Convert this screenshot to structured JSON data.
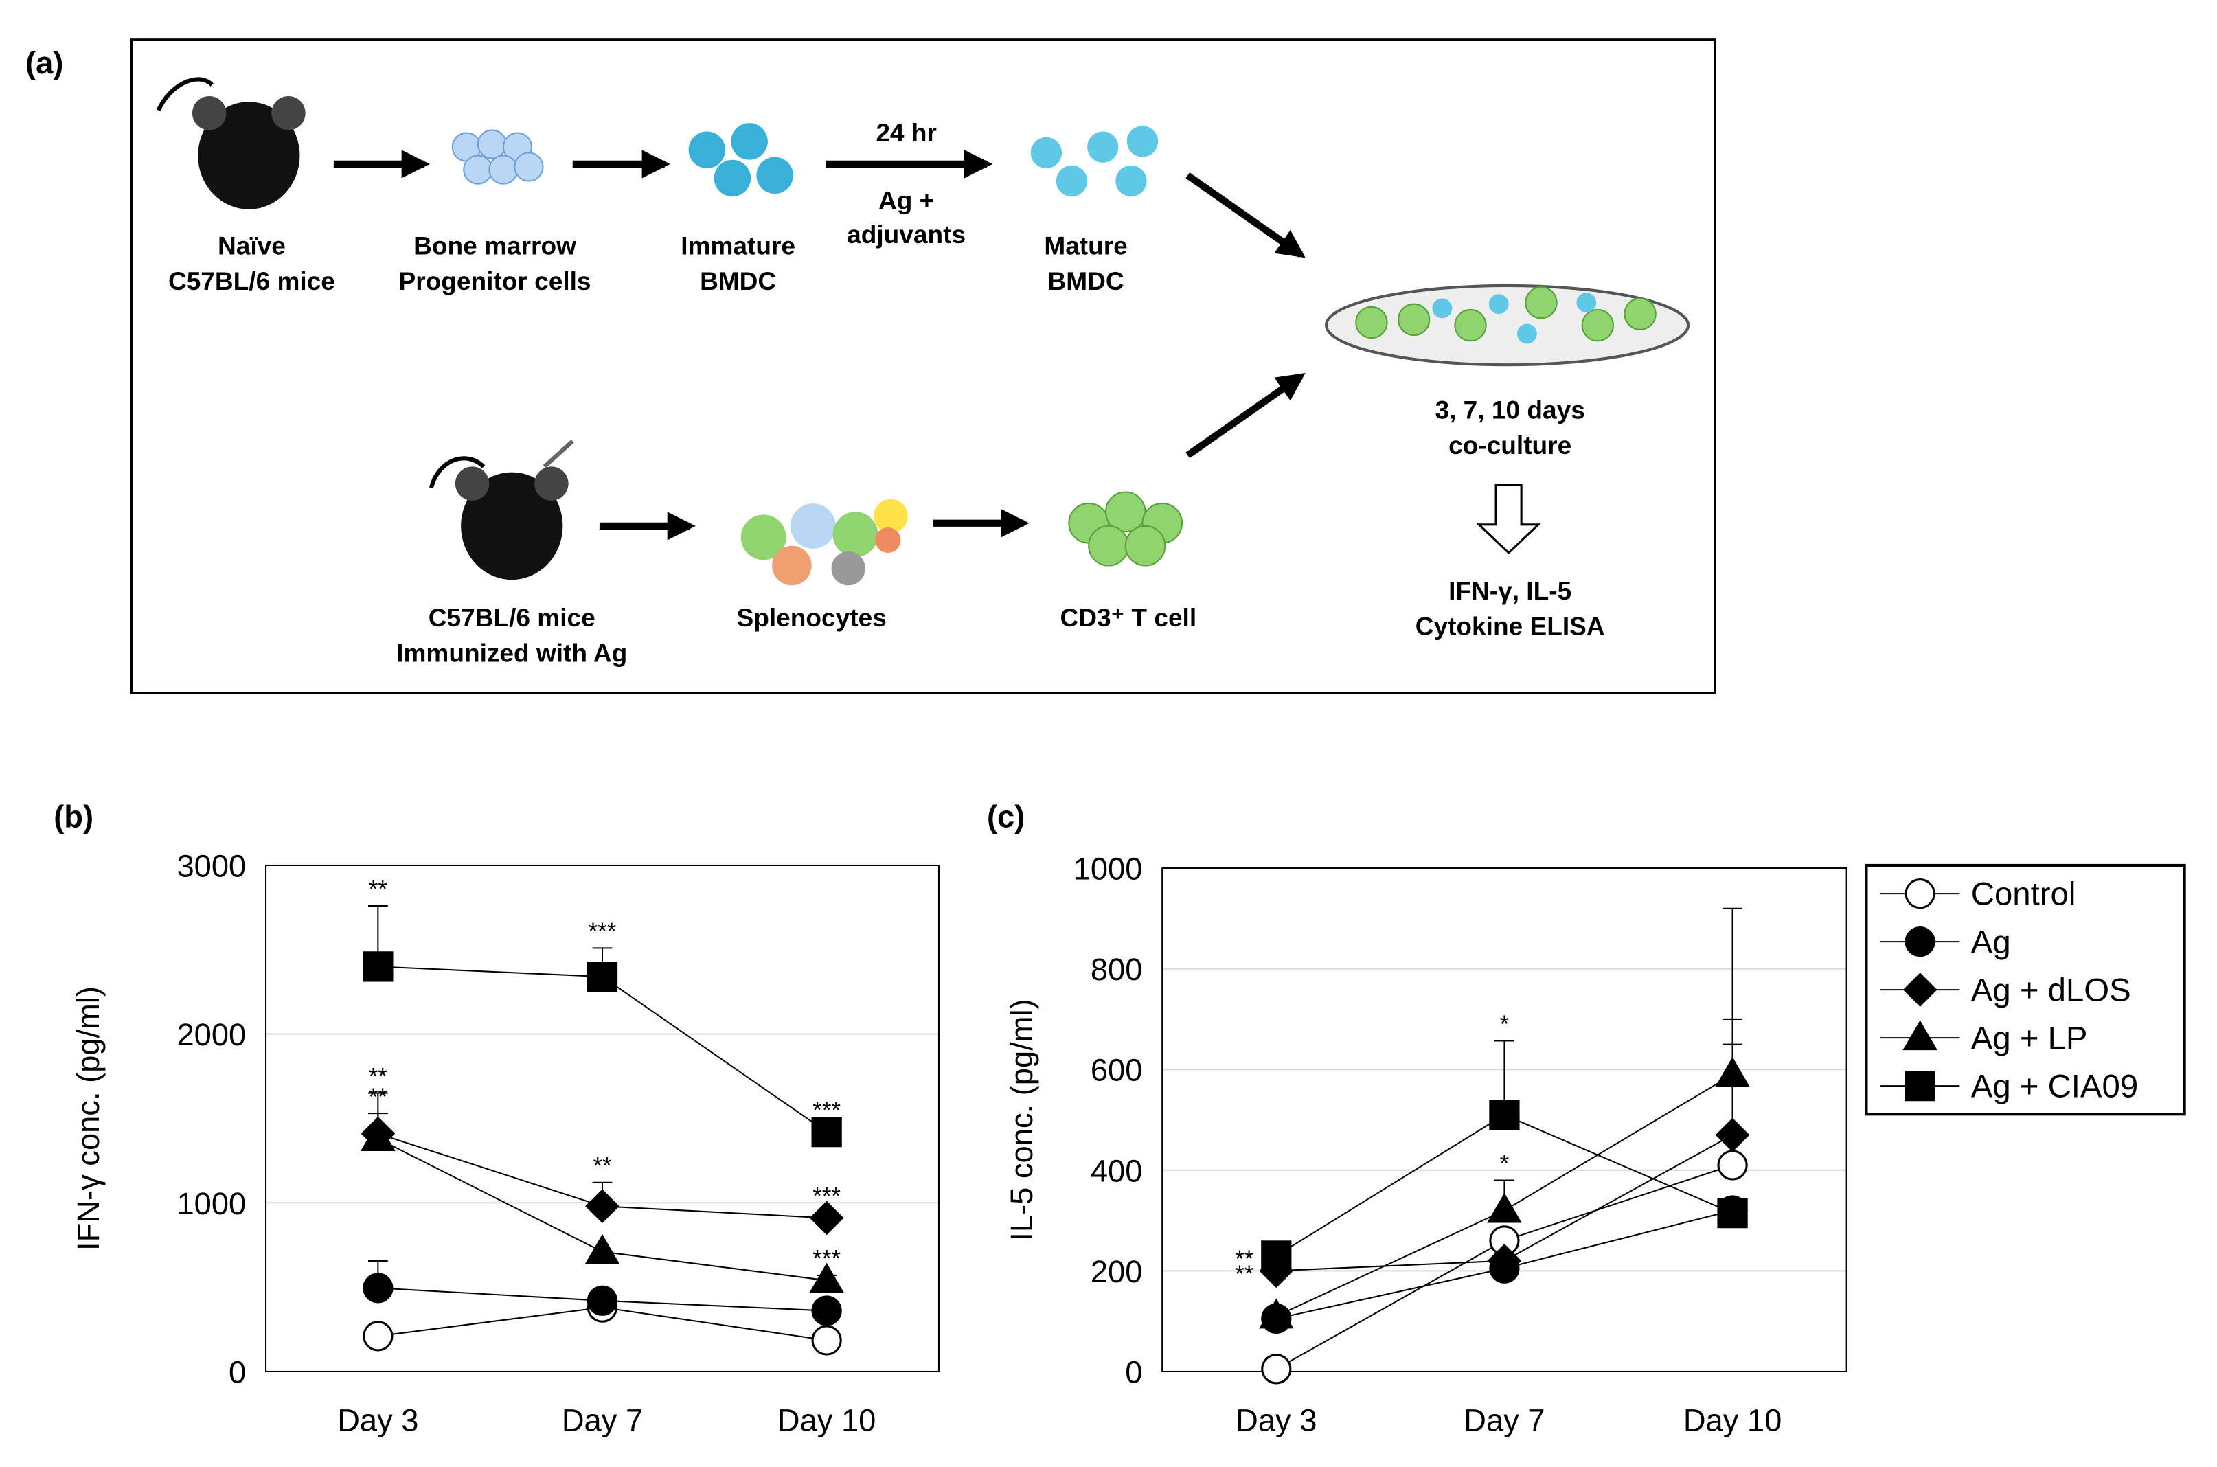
{
  "diagram": {
    "panel_label": "(a)",
    "nodes": [
      {
        "label": [
          "Naïve",
          "C57BL/6 mice"
        ]
      },
      {
        "label": [
          "Bone marrow",
          "Progenitor cells"
        ]
      },
      {
        "label": [
          "Immature",
          "BMDC"
        ]
      },
      {
        "label": [
          "Mature",
          "BMDC"
        ]
      },
      {
        "label": [
          "C57BL/6 mice",
          "Immunized with Ag"
        ]
      },
      {
        "label": [
          "Splenocytes"
        ]
      },
      {
        "label": [
          "CD3⁺ T cell"
        ]
      },
      {
        "label": [
          "3, 7, 10 days",
          "co-culture"
        ]
      },
      {
        "label": [
          "IFN-γ, IL-5",
          "Cytokine ELISA"
        ]
      }
    ],
    "arrow_label": {
      "above": "24 hr",
      "below": [
        "Ag +",
        "adjuvants"
      ]
    }
  },
  "chart_data": [
    {
      "type": "line",
      "panel_label": "(b)",
      "y_label": "IFN-γ conc. (pg/ml)",
      "categories": [
        "Day 3",
        "Day 7",
        "Day 10"
      ],
      "ylim": [
        0,
        3000
      ],
      "yticks": [
        0,
        1000,
        2000,
        3000
      ],
      "grid": true,
      "series": [
        {
          "marker": "open-circle",
          "color": "#000000",
          "values": [
            210,
            380,
            185
          ],
          "errors": [
            0,
            0,
            0
          ],
          "annotations": [
            null,
            null,
            null
          ]
        },
        {
          "marker": "circle",
          "color": "#000000",
          "values": [
            495,
            420,
            360
          ],
          "errors": [
            160,
            0,
            0
          ],
          "annotations": [
            null,
            null,
            null
          ]
        },
        {
          "marker": "diamond",
          "color": "#000000",
          "values": [
            1410,
            980,
            910
          ],
          "errors": [
            240,
            140,
            30
          ],
          "annotations": [
            "**",
            "**",
            "***"
          ]
        },
        {
          "marker": "triangle",
          "color": "#000000",
          "values": [
            1380,
            710,
            540
          ],
          "errors": [
            150,
            0,
            30
          ],
          "annotations": [
            "**",
            null,
            "***"
          ]
        },
        {
          "marker": "square",
          "color": "#000000",
          "values": [
            2400,
            2340,
            1420
          ],
          "errors": [
            360,
            170,
            30
          ],
          "annotations": [
            "**",
            "***",
            "***"
          ]
        }
      ]
    },
    {
      "type": "line",
      "panel_label": "(c)",
      "y_label": "IL-5 conc. (pg/ml)",
      "categories": [
        "Day 3",
        "Day 7",
        "Day 10"
      ],
      "ylim": [
        0,
        1000
      ],
      "yticks": [
        0,
        200,
        400,
        600,
        800,
        1000
      ],
      "grid": true,
      "legend": "right",
      "series": [
        {
          "name": "Control",
          "marker": "open-circle",
          "color": "#000000",
          "values": [
            5,
            260,
            410
          ],
          "errors": [
            0,
            0,
            240
          ],
          "annotations": [
            null,
            null,
            null
          ]
        },
        {
          "name": "Ag",
          "marker": "circle",
          "color": "#000000",
          "values": [
            105,
            205,
            320
          ],
          "errors": [
            0,
            0,
            0
          ],
          "annotations": [
            null,
            null,
            null
          ]
        },
        {
          "name": "Ag + dLOS",
          "marker": "diamond",
          "color": "#000000",
          "values": [
            200,
            220,
            470
          ],
          "errors": [
            0,
            0,
            230
          ],
          "annotations": [
            "**",
            null,
            null
          ]
        },
        {
          "name": "Ag + LP",
          "marker": "triangle",
          "color": "#000000",
          "values": [
            110,
            320,
            590
          ],
          "errors": [
            0,
            60,
            330
          ],
          "annotations": [
            null,
            "*",
            null
          ]
        },
        {
          "name": "Ag + CIA09",
          "marker": "square",
          "color": "#000000",
          "values": [
            230,
            510,
            315
          ],
          "errors": [
            0,
            147,
            0
          ],
          "annotations": [
            "**",
            "*",
            null
          ]
        }
      ]
    }
  ]
}
